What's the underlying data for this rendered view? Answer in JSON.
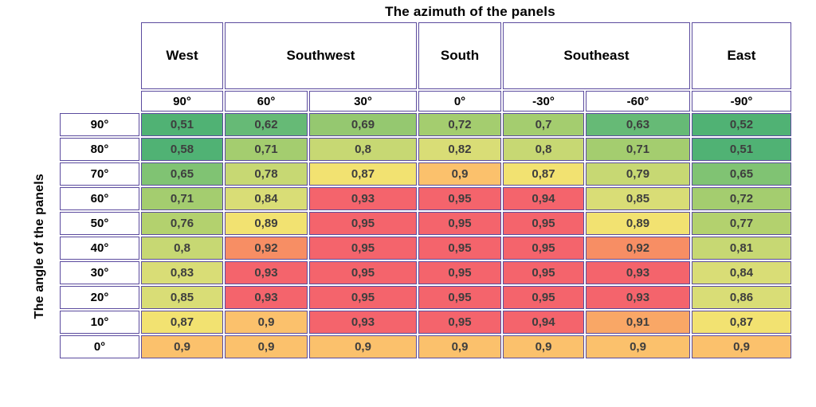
{
  "title": "The azimuth of the panels",
  "y_axis_label": "The angle of the panels",
  "style": {
    "border_color": "#5b4b9e",
    "value_text_color": "#3e3e3e",
    "background_color": "#ffffff"
  },
  "chart_data": {
    "type": "heatmap",
    "title": "The azimuth of the panels",
    "xlabel": "The azimuth of the panels",
    "ylabel": "The angle of the panels",
    "column_groups": [
      {
        "label": "West",
        "span": 1
      },
      {
        "label": "Southwest",
        "span": 2
      },
      {
        "label": "South",
        "span": 1
      },
      {
        "label": "Southeast",
        "span": 2
      },
      {
        "label": "East",
        "span": 1
      }
    ],
    "azimuth_degrees": [
      "90°",
      "60°",
      "30°",
      "0°",
      "-30°",
      "-60°",
      "-90°"
    ],
    "angle_rows": [
      "90°",
      "80°",
      "70°",
      "60°",
      "50°",
      "40°",
      "30°",
      "20°",
      "10°",
      "0°"
    ],
    "values": [
      [
        "0,51",
        "0,62",
        "0,69",
        "0,72",
        "0,7",
        "0,63",
        "0,52"
      ],
      [
        "0,58",
        "0,71",
        "0,8",
        "0,82",
        "0,8",
        "0,71",
        "0,51"
      ],
      [
        "0,65",
        "0,78",
        "0,87",
        "0,9",
        "0,87",
        "0,79",
        "0,65"
      ],
      [
        "0,71",
        "0,84",
        "0,93",
        "0,95",
        "0,94",
        "0,85",
        "0,72"
      ],
      [
        "0,76",
        "0,89",
        "0,95",
        "0,95",
        "0,95",
        "0,89",
        "0,77"
      ],
      [
        "0,8",
        "0,92",
        "0,95",
        "0,95",
        "0,95",
        "0,92",
        "0,81"
      ],
      [
        "0,83",
        "0,93",
        "0,95",
        "0,95",
        "0,95",
        "0,93",
        "0,84"
      ],
      [
        "0,85",
        "0,93",
        "0,95",
        "0,95",
        "0,95",
        "0,93",
        "0,86"
      ],
      [
        "0,87",
        "0,9",
        "0,93",
        "0,95",
        "0,94",
        "0,91",
        "0,87"
      ],
      [
        "0,9",
        "0,9",
        "0,9",
        "0,9",
        "0,9",
        "0,9",
        "0,9"
      ]
    ],
    "color_scale": [
      {
        "max": 0.58,
        "color": "#50b274"
      },
      {
        "max": 0.63,
        "color": "#66ba76"
      },
      {
        "max": 0.66,
        "color": "#80c373"
      },
      {
        "max": 0.69,
        "color": "#95c870"
      },
      {
        "max": 0.72,
        "color": "#a4cd6f"
      },
      {
        "max": 0.77,
        "color": "#b3d16e"
      },
      {
        "max": 0.81,
        "color": "#c7d873"
      },
      {
        "max": 0.86,
        "color": "#d9dd76"
      },
      {
        "max": 0.89,
        "color": "#f2e271"
      },
      {
        "max": 0.9,
        "color": "#fbc16c"
      },
      {
        "max": 0.91,
        "color": "#f9a766"
      },
      {
        "max": 0.92,
        "color": "#f78e64"
      },
      {
        "max": 1.0,
        "color": "#f4646c"
      }
    ]
  }
}
